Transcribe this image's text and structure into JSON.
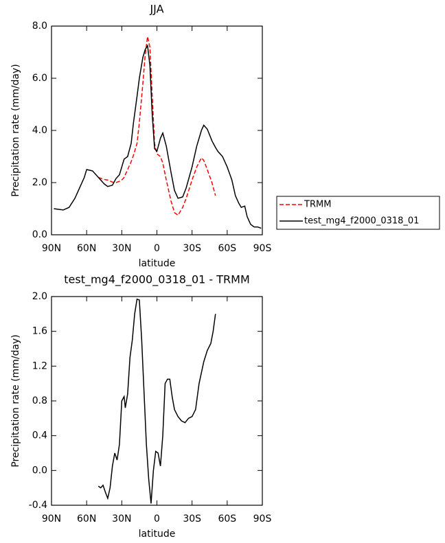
{
  "chart_data": [
    {
      "type": "line",
      "title": "JJA",
      "xlabel": "latitude",
      "ylabel": "Precipitation rate (mm/day)",
      "xlim": [
        90,
        -90
      ],
      "xticks": [
        {
          "value": 90,
          "label": "90N"
        },
        {
          "value": 60,
          "label": "60N"
        },
        {
          "value": 30,
          "label": "30N"
        },
        0,
        {
          "value": -30,
          "label": "30S"
        },
        {
          "value": -60,
          "label": "60S"
        },
        {
          "value": -90,
          "label": "90S"
        }
      ],
      "ylim": [
        0,
        8
      ],
      "yticks": [
        {
          "value": 0,
          "label": "0.0"
        },
        {
          "value": 2,
          "label": "2.0"
        },
        {
          "value": 4,
          "label": "4.0"
        },
        {
          "value": 6,
          "label": "6.0"
        },
        {
          "value": 8,
          "label": "8.0"
        }
      ],
      "legend": "right",
      "x": [
        88,
        80,
        75,
        70,
        65,
        62,
        60,
        55,
        50,
        45,
        42,
        38,
        35,
        32,
        30,
        28,
        25,
        22,
        20,
        17,
        15,
        12,
        10,
        8,
        6,
        4,
        2,
        0,
        -3,
        -5,
        -8,
        -12,
        -15,
        -18,
        -22,
        -25,
        -30,
        -34,
        -38,
        -40,
        -43,
        -47,
        -50,
        -52,
        -56,
        -60,
        -64,
        -67,
        -70,
        -72,
        -75,
        -77,
        -80,
        -83,
        -86,
        -89
      ],
      "series": [
        {
          "name": "TRMM",
          "color": "#ff0000",
          "dashed": true,
          "values": [
            null,
            null,
            null,
            null,
            null,
            null,
            null,
            null,
            2.2,
            2.12,
            2.1,
            2.02,
            2.0,
            2.05,
            2.1,
            2.2,
            2.5,
            2.8,
            3.05,
            3.5,
            4.3,
            5.8,
            6.9,
            7.6,
            7.2,
            5.3,
            3.5,
            3.1,
            3.0,
            2.75,
            2.1,
            1.3,
            0.85,
            0.75,
            1.05,
            1.4,
            2.1,
            2.6,
            2.95,
            2.85,
            2.5,
            2.0,
            1.5,
            null,
            null,
            null,
            null,
            null,
            null,
            null,
            null,
            null,
            null,
            null,
            null,
            null
          ]
        },
        {
          "name": "test_mg4_f2000_0318_01",
          "color": "#000000",
          "dashed": false,
          "values": [
            1.0,
            0.95,
            1.05,
            1.4,
            1.9,
            2.2,
            2.5,
            2.45,
            2.2,
            1.95,
            1.85,
            1.9,
            2.15,
            2.3,
            2.6,
            2.9,
            3.0,
            3.5,
            4.3,
            5.3,
            6.0,
            6.8,
            7.1,
            7.25,
            6.5,
            4.6,
            3.3,
            3.2,
            3.7,
            3.9,
            3.4,
            2.4,
            1.7,
            1.4,
            1.45,
            1.8,
            2.6,
            3.4,
            4.0,
            4.2,
            4.05,
            3.6,
            3.35,
            3.2,
            3.0,
            2.6,
            2.1,
            1.5,
            1.2,
            1.05,
            1.1,
            0.7,
            0.4,
            0.3,
            0.3,
            0.25
          ]
        }
      ]
    },
    {
      "type": "line",
      "title": "test_mg4_f2000_0318_01 - TRMM",
      "xlabel": "latitude",
      "ylabel": "Precipitation rate (mm/day)",
      "xlim": [
        90,
        -90
      ],
      "xticks": [
        {
          "value": 90,
          "label": "90N"
        },
        {
          "value": 60,
          "label": "60N"
        },
        {
          "value": 30,
          "label": "30N"
        },
        0,
        {
          "value": -30,
          "label": "30S"
        },
        {
          "value": -60,
          "label": "60S"
        },
        {
          "value": -90,
          "label": "90S"
        }
      ],
      "ylim": [
        -0.4,
        2
      ],
      "yticks": [
        -0.4,
        {
          "value": 0,
          "label": "0.0"
        },
        0.4,
        0.8,
        1.2,
        1.6,
        {
          "value": 2,
          "label": "2.0"
        }
      ],
      "x": [
        50,
        48,
        46,
        44,
        42,
        40,
        38,
        36,
        34,
        32,
        30,
        28,
        27,
        25,
        23,
        21,
        19,
        17,
        15,
        13,
        11,
        9,
        7,
        5,
        3,
        1,
        -1,
        -3,
        -5,
        -7,
        -9,
        -11,
        -13,
        -15,
        -18,
        -21,
        -24,
        -27,
        -30,
        -33,
        -36,
        -40,
        -43,
        -46,
        -48,
        -50
      ],
      "color": "#000000",
      "values": [
        -0.18,
        -0.2,
        -0.17,
        -0.25,
        -0.32,
        -0.2,
        0.05,
        0.2,
        0.12,
        0.3,
        0.8,
        0.85,
        0.72,
        0.88,
        1.3,
        1.5,
        1.8,
        1.97,
        1.96,
        1.5,
        0.9,
        0.3,
        -0.1,
        -0.38,
        0.0,
        0.22,
        0.2,
        0.05,
        0.4,
        1.0,
        1.05,
        1.05,
        0.85,
        0.7,
        0.62,
        0.57,
        0.55,
        0.6,
        0.62,
        0.7,
        1.0,
        1.25,
        1.38,
        1.46,
        1.6,
        1.8
      ]
    }
  ]
}
